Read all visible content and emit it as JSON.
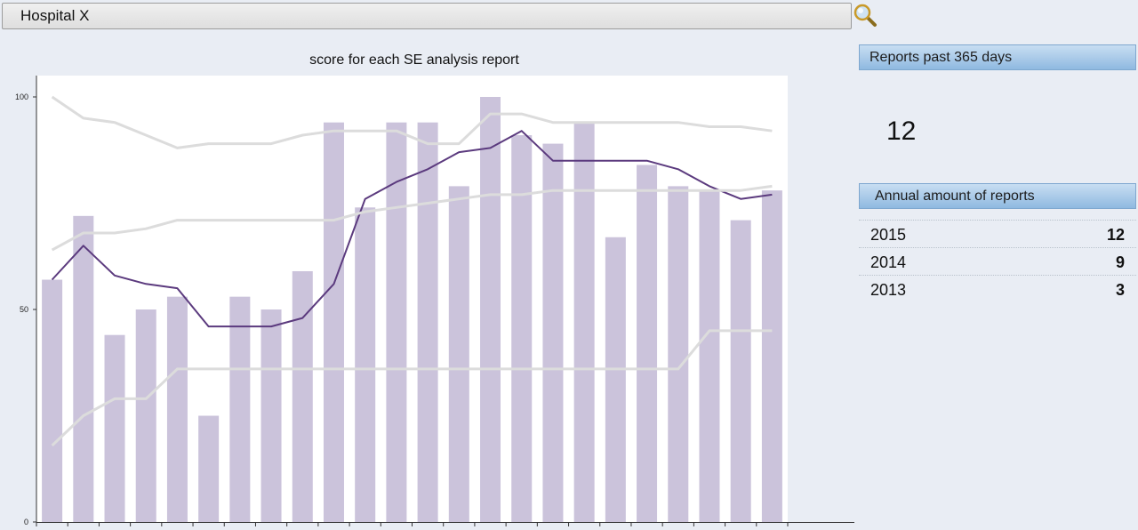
{
  "header": {
    "hospital_name": "Hospital X",
    "search_icon": "magnifier-icon"
  },
  "chart_data": {
    "type": "bar",
    "title": "score for each SE analysis report",
    "xlabel": "",
    "ylabel": "",
    "ylim": [
      0,
      100
    ],
    "y_ticks": [
      "0",
      "50",
      "100"
    ],
    "grid": false,
    "bar_color": "#cbc3db",
    "line_color": "#5b3a7e",
    "band_color": "#dcdcdc",
    "values": [
      57,
      72,
      44,
      50,
      53,
      25,
      53,
      50,
      59,
      94,
      74,
      94,
      94,
      79,
      100,
      91,
      89,
      94,
      67,
      84,
      79,
      78,
      71,
      78
    ],
    "series": [
      {
        "values": [
          57,
          65,
          58,
          56,
          55,
          46,
          46,
          46,
          48,
          56,
          76,
          80,
          83,
          87,
          88,
          92,
          85,
          85,
          85,
          85,
          83,
          79,
          76,
          77
        ]
      },
      {
        "values": [
          100,
          95,
          94,
          91,
          88,
          89,
          89,
          89,
          91,
          92,
          92,
          92,
          89,
          89,
          96,
          96,
          94,
          94,
          94,
          94,
          94,
          93,
          93,
          92
        ]
      },
      {
        "values": [
          64,
          68,
          68,
          69,
          71,
          71,
          71,
          71,
          71,
          71,
          73,
          74,
          75,
          76,
          77,
          77,
          78,
          78,
          78,
          78,
          78,
          78,
          78,
          79
        ]
      },
      {
        "values": [
          18,
          25,
          29,
          29,
          36,
          36,
          36,
          36,
          36,
          36,
          36,
          36,
          36,
          36,
          36,
          36,
          36,
          36,
          36,
          36,
          36,
          45,
          45,
          45
        ]
      }
    ]
  },
  "sidebar": {
    "reports_header": "Reports past 365 days",
    "reports_count": "12",
    "annual_header": "Annual amount of reports",
    "annual": [
      {
        "year": "2015",
        "count": "12"
      },
      {
        "year": "2014",
        "count": "9"
      },
      {
        "year": "2013",
        "count": "3"
      }
    ]
  }
}
